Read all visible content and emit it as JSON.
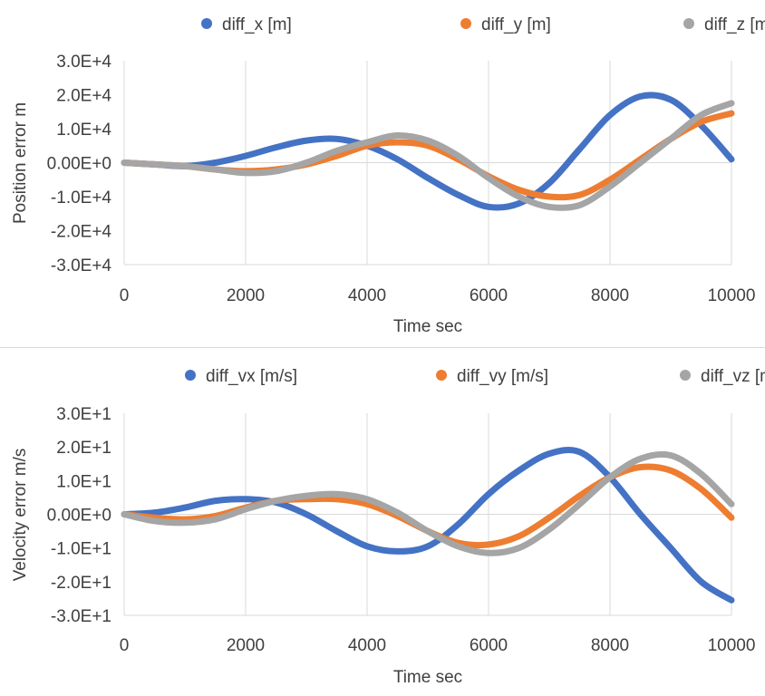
{
  "chart_data": [
    {
      "type": "line",
      "xlabel": "Time sec",
      "ylabel": "Position error m",
      "xlim": [
        0,
        10000
      ],
      "ylim": [
        -30000,
        30000
      ],
      "x_ticks": [
        0,
        2000,
        4000,
        6000,
        8000,
        10000
      ],
      "x_tick_labels": [
        "0",
        "2000",
        "4000",
        "6000",
        "8000",
        "10000"
      ],
      "y_ticks": [
        30000,
        20000,
        10000,
        0,
        -10000,
        -20000,
        -30000
      ],
      "y_tick_labels": [
        "3.0E+4",
        "2.0E+4",
        "1.0E+4",
        "0.00E+0",
        "-1.0E+4",
        "-2.0E+4",
        "-3.0E+4"
      ],
      "grid": "vertical",
      "legend": "top",
      "x": [
        0,
        500,
        1000,
        1500,
        2000,
        2500,
        3000,
        3500,
        4000,
        4500,
        5000,
        5500,
        6000,
        6500,
        7000,
        7500,
        8000,
        8500,
        9000,
        9500,
        10000
      ],
      "series": [
        {
          "name": "diff_x [m]",
          "color": "#4472C4",
          "values": [
            0,
            -500,
            -1000,
            0,
            2000,
            4500,
            6500,
            7000,
            5000,
            1000,
            -4500,
            -9500,
            -13000,
            -12000,
            -6000,
            4000,
            14000,
            19500,
            18500,
            11000,
            1000
          ]
        },
        {
          "name": "diff_y [m]",
          "color": "#ED7D31",
          "values": [
            0,
            -500,
            -1000,
            -2000,
            -2500,
            -2000,
            -500,
            2000,
            5000,
            6000,
            5000,
            1000,
            -4000,
            -8000,
            -10000,
            -9500,
            -5000,
            1000,
            7000,
            12000,
            14500
          ]
        },
        {
          "name": "diff_z [m]",
          "color": "#A5A5A5",
          "values": [
            0,
            -500,
            -1000,
            -2000,
            -3000,
            -2500,
            0,
            3500,
            6000,
            8000,
            6500,
            2000,
            -4500,
            -10000,
            -13000,
            -12500,
            -7000,
            0,
            7000,
            14000,
            17500
          ]
        }
      ]
    },
    {
      "type": "line",
      "xlabel": "Time sec",
      "ylabel": "Velocity error m/s",
      "xlim": [
        0,
        10000
      ],
      "ylim": [
        -30,
        30
      ],
      "x_ticks": [
        0,
        2000,
        4000,
        6000,
        8000,
        10000
      ],
      "x_tick_labels": [
        "0",
        "2000",
        "4000",
        "6000",
        "8000",
        "10000"
      ],
      "y_ticks": [
        30,
        20,
        10,
        0,
        -10,
        -20,
        -30
      ],
      "y_tick_labels": [
        "3.0E+1",
        "2.0E+1",
        "1.0E+1",
        "0.00E+0",
        "-1.0E+1",
        "-2.0E+1",
        "-3.0E+1"
      ],
      "grid": "vertical",
      "legend": "top",
      "x": [
        0,
        500,
        1000,
        1500,
        2000,
        2500,
        3000,
        3500,
        4000,
        4500,
        5000,
        5500,
        6000,
        6500,
        7000,
        7500,
        8000,
        8500,
        9000,
        9500,
        10000
      ],
      "series": [
        {
          "name": "diff_vx [m/s]",
          "color": "#4472C4",
          "values": [
            0,
            0.5,
            2,
            4,
            4.5,
            3.5,
            0,
            -5,
            -9.5,
            -11,
            -9.5,
            -3,
            6,
            13,
            18,
            18.5,
            11,
            0,
            -10,
            -20,
            -25.5
          ]
        },
        {
          "name": "diff_vy [m/s]",
          "color": "#ED7D31",
          "values": [
            0,
            -1,
            -1.5,
            -0.5,
            2,
            4,
            4.5,
            4.5,
            3,
            -0.5,
            -5,
            -8.5,
            -9,
            -6.5,
            -1,
            5.5,
            11,
            14,
            13,
            7.5,
            -1
          ]
        },
        {
          "name": "diff_vz [m/s]",
          "color": "#A5A5A5",
          "values": [
            0,
            -2,
            -2.5,
            -1.5,
            1.5,
            4,
            5.5,
            6,
            4.5,
            0.5,
            -5,
            -9.5,
            -11.5,
            -10,
            -4.5,
            3,
            11,
            16.5,
            17.5,
            12,
            3
          ]
        }
      ]
    }
  ]
}
